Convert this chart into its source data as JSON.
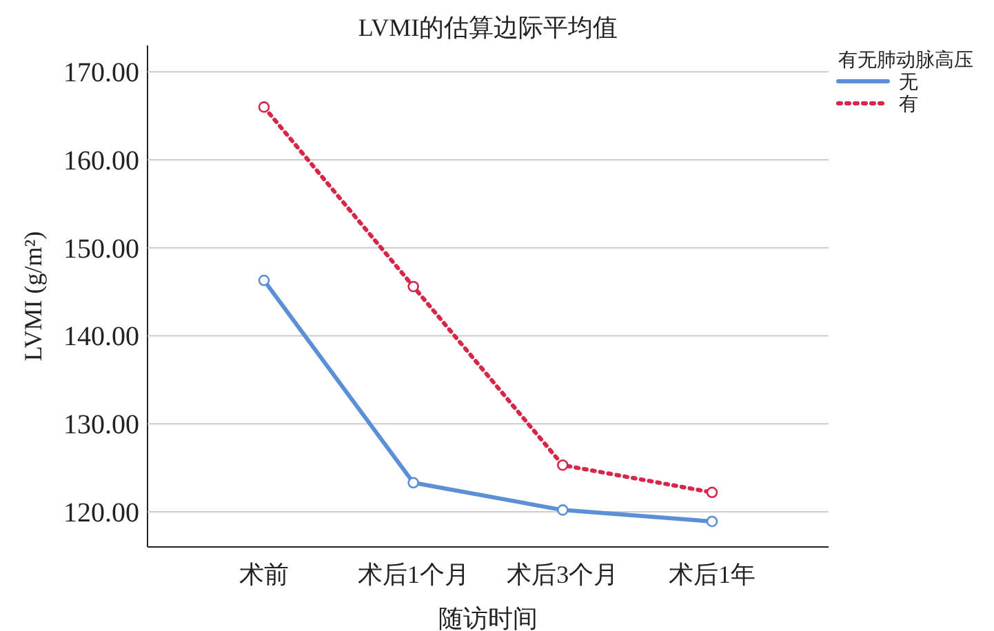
{
  "chart_data": {
    "type": "line",
    "title": "LVMI的估算边际平均值",
    "xlabel": "随访时间",
    "ylabel": "LVMI (g/m²)",
    "legend_title": "有无肺动脉高压",
    "categories": [
      "术前",
      "术后1个月",
      "术后3个月",
      "术后1年"
    ],
    "series": [
      {
        "name": "无",
        "color": "#5b8fd6",
        "line_style": "solid",
        "values": [
          146.3,
          123.3,
          120.2,
          118.9
        ]
      },
      {
        "name": "有",
        "color": "#d6264a",
        "line_style": "dotted",
        "values": [
          166.0,
          145.6,
          125.3,
          122.2
        ]
      }
    ],
    "ylim": [
      116,
      173
    ],
    "yticks": [
      {
        "value": 120,
        "label": "120.00"
      },
      {
        "value": 130,
        "label": "130.00"
      },
      {
        "value": 140,
        "label": "140.00"
      },
      {
        "value": 150,
        "label": "150.00"
      },
      {
        "value": 160,
        "label": "160.00"
      },
      {
        "value": 170,
        "label": "170.00"
      }
    ],
    "grid": "y",
    "legend": "top right",
    "marker": "circle"
  }
}
